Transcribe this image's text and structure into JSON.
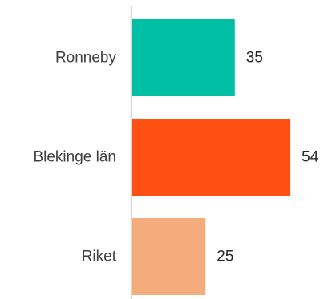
{
  "chart_data": {
    "type": "bar",
    "orientation": "horizontal",
    "categories": [
      "Ronneby",
      "Blekinge län",
      "Riket"
    ],
    "values": [
      35,
      54,
      25
    ],
    "data_labels": [
      "35",
      "54",
      "25"
    ],
    "colors": [
      "#00BFA5",
      "#FF5014",
      "#F4AC7C"
    ],
    "axis_color": "#D9D9D9",
    "xlim": [
      0,
      63
    ],
    "grid": false,
    "legend": "none"
  }
}
